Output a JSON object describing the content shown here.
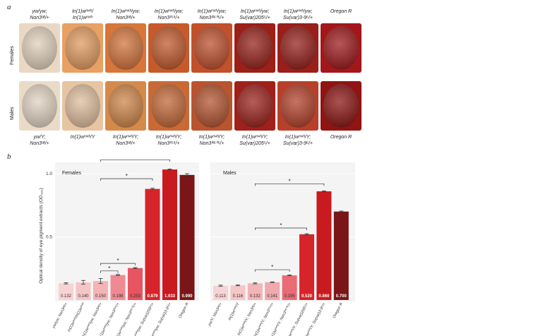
{
  "panel_a": {
    "letter": "a",
    "row_labels": [
      "Females",
      "Males"
    ],
    "female_genotypes": [
      {
        "line1": "yw/yw;",
        "line2": "Non3ᵃᵇ/+"
      },
      {
        "line1": "In(1)wᵐ⁴ʰ/",
        "line2": "In(1)wᵐ⁴ʰ"
      },
      {
        "line1": "In(1)wᵐ⁴ʰ/yw;",
        "line2": "Non3ᵃᵇ/+"
      },
      {
        "line1": "In(1)wᵐ⁴ʰ/yw;",
        "line2": "Non3²⁵⁹/+"
      },
      {
        "line1": "In(1)wᵐ⁴ʰ/yw;",
        "line2": "Non3ᴬ⁶⁰⁶/+"
      },
      {
        "line1": "In(1)wᵐ⁴ʰ/yw;",
        "line2": "Su(var)205⁵/+"
      },
      {
        "line1": "In(1)wᵐ⁴ʰ/yw;",
        "line2": "Su(var)3-9⁶/+"
      },
      {
        "line1": "Oregon R",
        "line2": ""
      }
    ],
    "male_genotypes": [
      {
        "line1": "yw/Y;",
        "line2": "Non3ᵃᵇ/+"
      },
      {
        "line1": "In(1)wᵐ⁴ʰ/Y",
        "line2": ""
      },
      {
        "line1": "In(1)wᵐ⁴ʰ/Y;",
        "line2": "Non3ᵃᵇ/+"
      },
      {
        "line1": "In(1)wᵐ⁴ʰ/Y;",
        "line2": "Non3²⁵⁹/+"
      },
      {
        "line1": "In(1)wᵐ⁴ʰ/Y;",
        "line2": "Non3ᴬ⁶⁰⁶/+"
      },
      {
        "line1": "In(1)wᵐ⁴ʰ/Y;",
        "line2": "Su(var)205⁵/+"
      },
      {
        "line1": "In(1)wᵐ⁴ʰ/Y;",
        "line2": "Su(var)3-9⁶/+"
      },
      {
        "line1": "Oregon R",
        "line2": ""
      }
    ],
    "female_eye_colors": [
      "#e9d8c3",
      "#e9a063",
      "#d8763a",
      "#c75a2b",
      "#c2502a",
      "#9c1f18",
      "#9a1e1a",
      "#a3171a"
    ],
    "male_eye_colors": [
      "#eadbc8",
      "#e7c4a2",
      "#d68a49",
      "#c96a35",
      "#b9542f",
      "#a0201b",
      "#b8402a",
      "#8f1412"
    ]
  },
  "panel_b": {
    "letter": "b"
  },
  "chart_data": [
    {
      "type": "bar",
      "title": "Females",
      "ylabel": "Optical density of eye pigment extracts (OD₄₈₀)",
      "ylim": [
        0,
        1.1
      ],
      "yticks": [
        "0.5",
        "1.0"
      ],
      "categories": [
        "yw/yw; Non3ᵃᵇ/+",
        "In(1)wᵐ⁴ʰ/In(1)wᵐ⁴ʰ",
        "In(1)wᵐ⁴ʰ/yw; Non3ᵃᵇ/+",
        "In(1)wᵐ⁴ʰ/yw; Non3²⁵⁹/+",
        "In(1)wᵐ⁴ʰ/yw; Non3ᴬ⁶⁰⁶/+",
        "In(1)wᵐ⁴ʰ/yw; Su(var)205⁵/+",
        "In(1)wᵐ⁴ʰ/yw; Su(var)3-9⁶/+",
        "Oregon R"
      ],
      "values": [
        0.132,
        0.14,
        0.15,
        0.198,
        0.253,
        0.879,
        1.033,
        0.99
      ],
      "value_labels": [
        "0.132",
        "0.140",
        "0.150",
        "0.198",
        "0.253",
        "0.879",
        "1.033",
        "0.990"
      ],
      "errors": [
        0.005,
        0.015,
        0.02,
        0.004,
        0.004,
        0.006,
        0.004,
        0.01
      ],
      "colors": [
        "#f8d3d3",
        "#f5c6c6",
        "#f2b4b6",
        "#ef8a93",
        "#e8545f",
        "#d7242a",
        "#c91a20",
        "#7a1518"
      ],
      "significance": [
        "*",
        "*",
        "*",
        "*"
      ]
    },
    {
      "type": "bar",
      "title": "Males",
      "ylim": [
        0,
        1.1
      ],
      "categories": [
        "yw/Y; Non3ᵃᵇ/+",
        "In(1)wᵐ⁴ʰ/Y",
        "In(1)wᵐ⁴ʰ/Y; Non3ᵃᵇ/+",
        "In(1)wᵐ⁴ʰ/Y; Non3²⁵⁹/+",
        "In(1)wᵐ⁴ʰ/Y; Non3ᴬ⁶⁰⁶/+",
        "In(1)wᵐ⁴ʰ/Y; Su(var)205⁵/+",
        "In(1)wᵐ⁴ʰ/Y; Su(var)3-9⁶/+",
        "Oregon R"
      ],
      "values": [
        0.113,
        0.116,
        0.132,
        0.141,
        0.195,
        0.52,
        0.86,
        0.7
      ],
      "value_labels": [
        "0.113",
        "0.116",
        "0.132",
        "0.141",
        "0.195",
        "0.520",
        "0.860",
        "0.700"
      ],
      "errors": [
        0.005,
        0.003,
        0.004,
        0.003,
        0.003,
        0.005,
        0.004,
        0.004
      ],
      "colors": [
        "#f8d3d3",
        "#f5c6c6",
        "#f2b4b6",
        "#f0a9ad",
        "#ea6a75",
        "#d7242a",
        "#c91a20",
        "#7a1518"
      ],
      "significance": [
        "*",
        "*",
        "*"
      ]
    }
  ]
}
